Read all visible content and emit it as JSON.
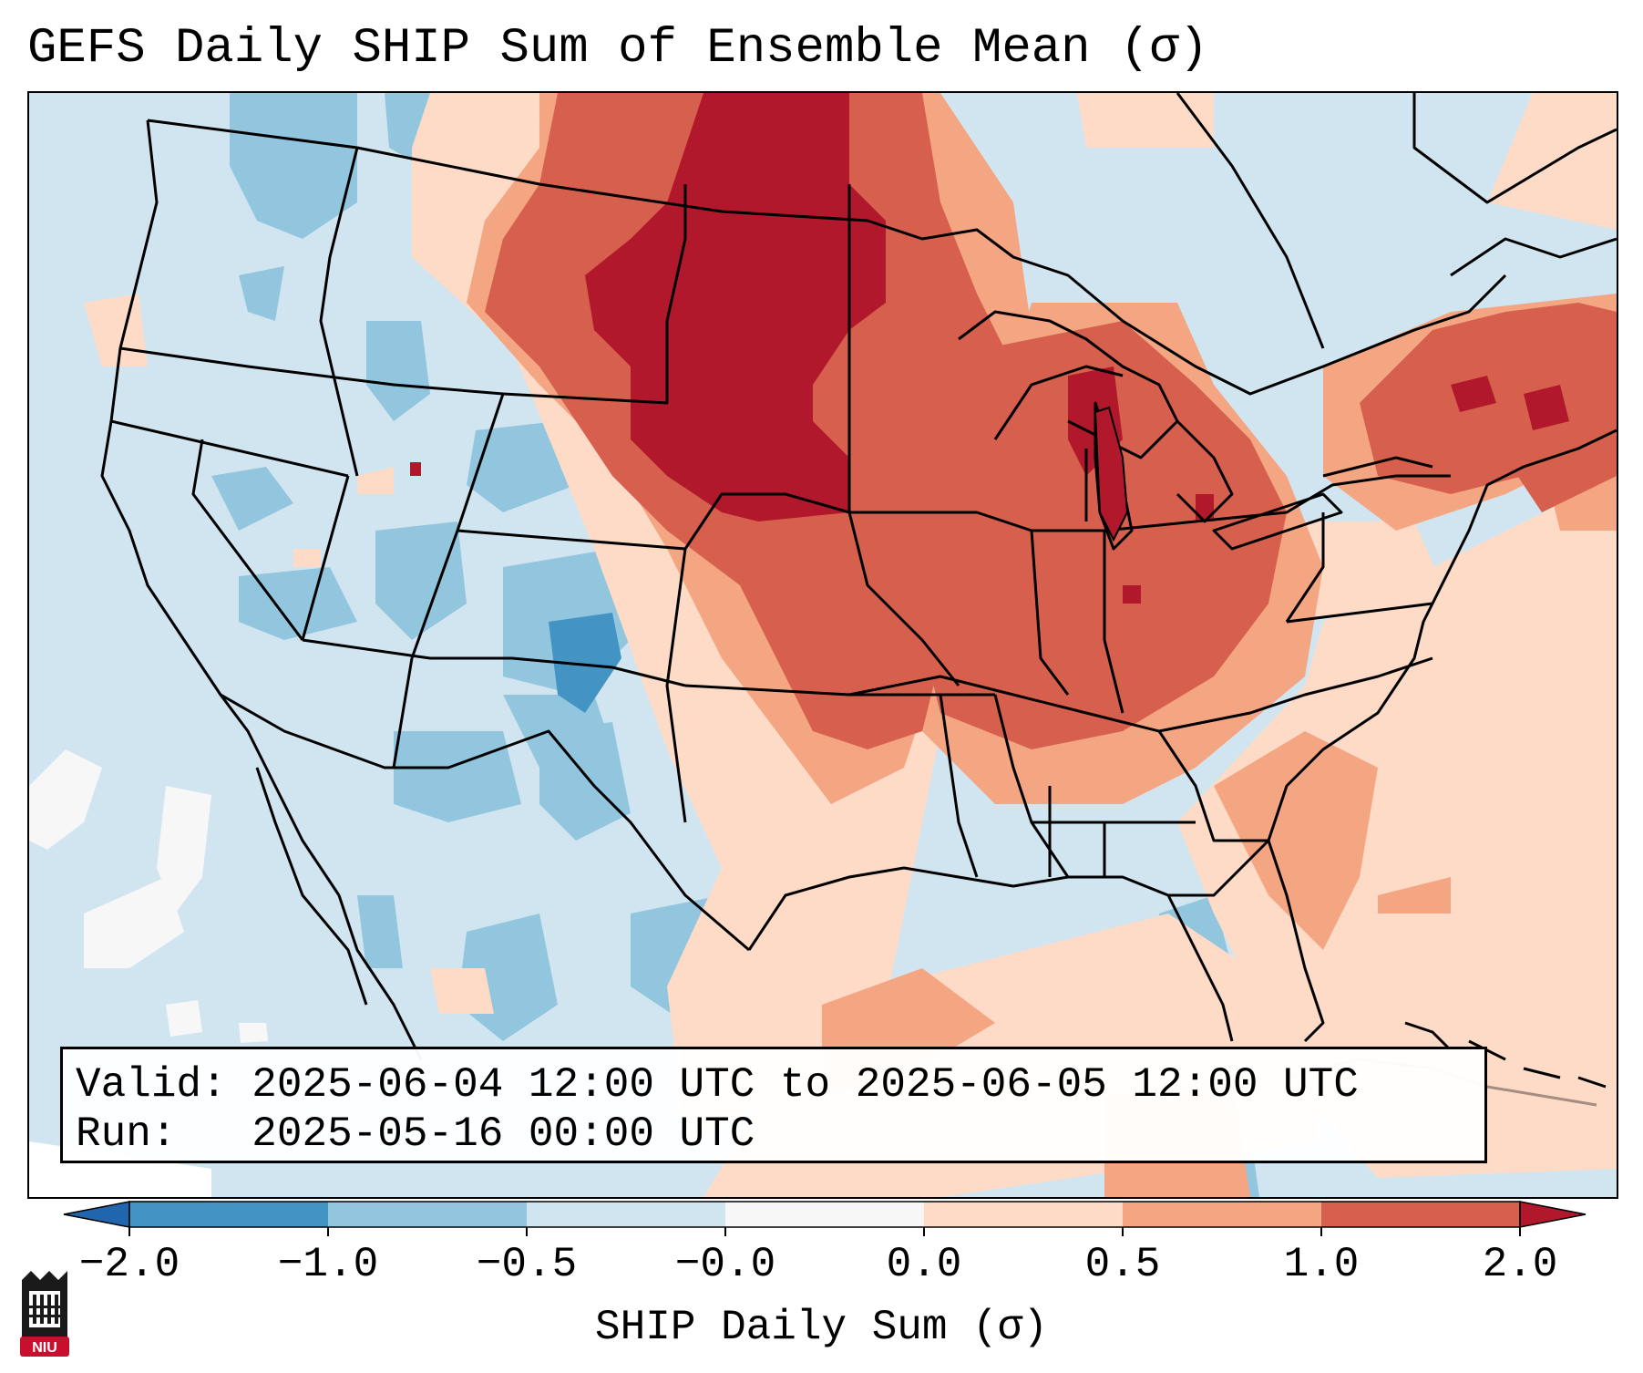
{
  "title": "GEFS Daily SHIP Sum of Ensemble Mean (σ)",
  "info": {
    "valid_label": "Valid:",
    "valid_text": "2025-06-04 12:00 UTC to 2025-06-05 12:00 UTC",
    "run_label": "Run:",
    "run_text": "2025-05-16 00:00 UTC"
  },
  "colorbar": {
    "label": "SHIP Daily Sum (σ)",
    "ticks": [
      "−2.0",
      "−1.0",
      "−0.5",
      "−0.0",
      "0.0",
      "0.5",
      "1.0",
      "2.0"
    ],
    "colors": [
      "#4393c3",
      "#92c5de",
      "#d1e5f0",
      "#f7f7f7",
      "#fddbc7",
      "#f4a582",
      "#d6604d",
      "#b2182b"
    ],
    "under_color": "#2166ac",
    "over_color": "#b2182b"
  },
  "logo": {
    "text": "NIU",
    "color": "#c8102e"
  }
}
